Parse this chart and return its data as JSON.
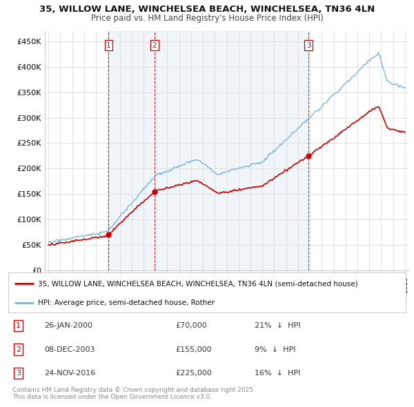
{
  "title": "35, WILLOW LANE, WINCHELSEA BEACH, WINCHELSEA, TN36 4LN",
  "subtitle": "Price paid vs. HM Land Registry's House Price Index (HPI)",
  "yticks": [
    0,
    50000,
    100000,
    150000,
    200000,
    250000,
    300000,
    350000,
    400000,
    450000
  ],
  "ytick_labels": [
    "£0",
    "£50K",
    "£100K",
    "£150K",
    "£200K",
    "£250K",
    "£300K",
    "£350K",
    "£400K",
    "£450K"
  ],
  "ylim": [
    0,
    470000
  ],
  "xlim_start": 1994.7,
  "xlim_end": 2025.3,
  "sale_color": "#cc0000",
  "hpi_color": "#7fb3d3",
  "shade_color": "#ddeeff",
  "sale_label": "35, WILLOW LANE, WINCHELSEA BEACH, WINCHELSEA, TN36 4LN (semi-detached house)",
  "hpi_label": "HPI: Average price, semi-detached house, Rother",
  "transactions": [
    {
      "num": 1,
      "date_label": "26-JAN-2000",
      "price": 70000,
      "pct": "21%",
      "dir": "↓",
      "x_year": 2000.07
    },
    {
      "num": 2,
      "date_label": "08-DEC-2003",
      "price": 155000,
      "pct": "9%",
      "dir": "↓",
      "x_year": 2003.93
    },
    {
      "num": 3,
      "date_label": "24-NOV-2016",
      "price": 225000,
      "pct": "16%",
      "dir": "↓",
      "x_year": 2016.9
    }
  ],
  "footnote": "Contains HM Land Registry data © Crown copyright and database right 2025.\nThis data is licensed under the Open Government Licence v3.0.",
  "background_color": "#ffffff",
  "grid_color": "#e0e0e0"
}
